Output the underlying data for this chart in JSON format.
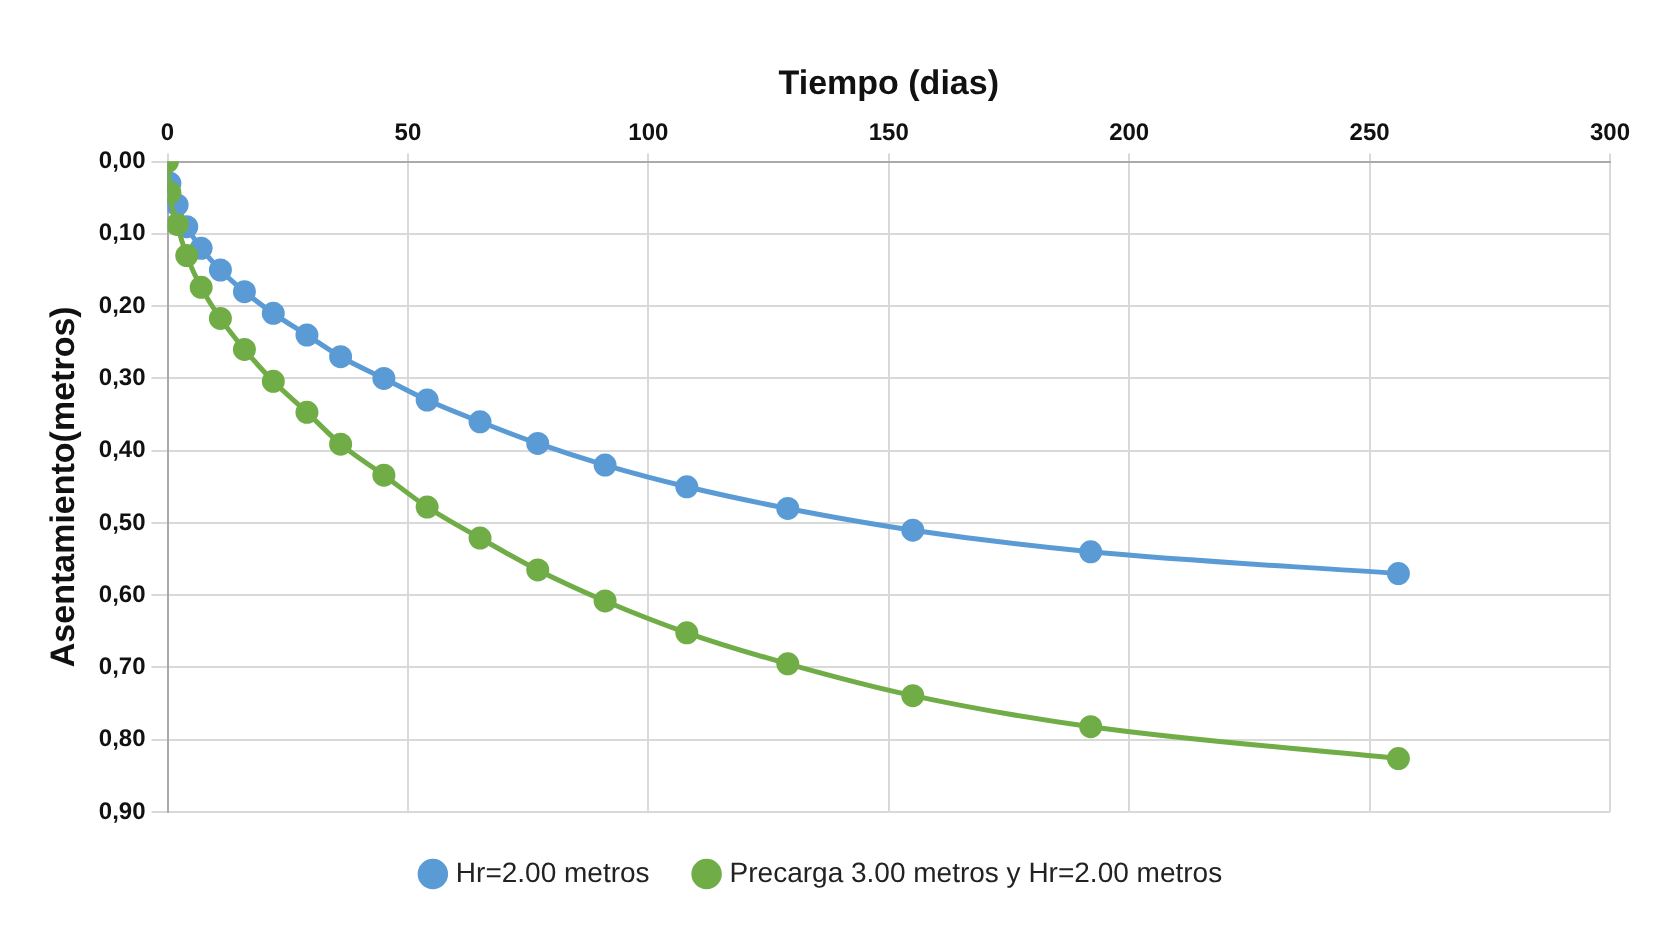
{
  "chart_data": {
    "type": "line",
    "xlabel": "Tiempo (dias)",
    "ylabel": "Asentamiento(metros)",
    "xlim": [
      0,
      300
    ],
    "xticks": [
      0,
      50,
      100,
      150,
      200,
      250,
      300
    ],
    "ylim": [
      0.9,
      0
    ],
    "yticks": [
      {
        "value": 0,
        "label": "0,00"
      },
      {
        "value": 0.1,
        "label": "0,10"
      },
      {
        "value": 0.2,
        "label": "0,20"
      },
      {
        "value": 0.3,
        "label": "0,30"
      },
      {
        "value": 0.4,
        "label": "0,40"
      },
      {
        "value": 0.5,
        "label": "0,50"
      },
      {
        "value": 0.6,
        "label": "0,60"
      },
      {
        "value": 0.7,
        "label": "0,70"
      },
      {
        "value": 0.8,
        "label": "0,80"
      },
      {
        "value": 0.9,
        "label": "0,90"
      }
    ],
    "grid": true,
    "legend": "bottom",
    "marker": "circle",
    "line_style": "solid",
    "series": [
      {
        "name": "Hr=2.00 metros",
        "color": "#5b9bd5",
        "x": [
          0.5,
          2,
          4,
          7,
          11,
          16,
          22,
          29,
          36,
          45,
          54,
          65,
          77,
          91,
          108,
          129,
          155,
          192,
          256
        ],
        "values": [
          0.03,
          0.06,
          0.09,
          0.12,
          0.15,
          0.18,
          0.21,
          0.24,
          0.27,
          0.3,
          0.33,
          0.36,
          0.39,
          0.42,
          0.45,
          0.48,
          0.51,
          0.54,
          0.57
        ]
      },
      {
        "name": "Precarga 3.00 metros y Hr=2.00 metros",
        "color": "#70ad47",
        "x": [
          0,
          0.5,
          2,
          4,
          7,
          11,
          16,
          22,
          29,
          36,
          45,
          54,
          65,
          77,
          91,
          108,
          129,
          155,
          192,
          256
        ],
        "values": [
          0,
          0.043,
          0.087,
          0.13,
          0.174,
          0.217,
          0.26,
          0.304,
          0.347,
          0.391,
          0.434,
          0.478,
          0.521,
          0.565,
          0.608,
          0.652,
          0.695,
          0.739,
          0.782,
          0.826
        ]
      }
    ]
  }
}
